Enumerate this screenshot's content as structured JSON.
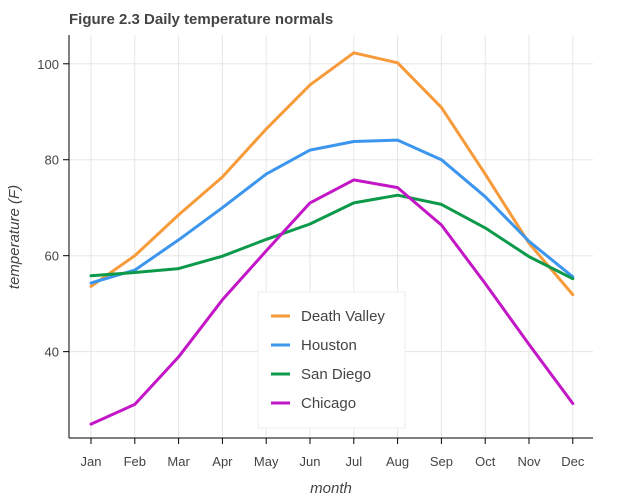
{
  "chart_data": {
    "type": "line",
    "title": "Figure 2.3 Daily temperature normals",
    "xlabel": "month",
    "ylabel": "temperature (F)",
    "categories": [
      "Jan",
      "Feb",
      "Mar",
      "Apr",
      "May",
      "Jun",
      "Jul",
      "Aug",
      "Sep",
      "Oct",
      "Nov",
      "Dec"
    ],
    "yticks": [
      40,
      60,
      80,
      100
    ],
    "ylim": [
      22,
      106
    ],
    "grid": true,
    "legend_position": "bottom-center",
    "series": [
      {
        "name": "Death Valley",
        "color": "#f79b3a",
        "values": [
          53.6,
          60.0,
          68.5,
          76.4,
          86.4,
          95.6,
          102.3,
          100.2,
          90.9,
          77.0,
          62.6,
          51.9
        ]
      },
      {
        "name": "Houston",
        "color": "#3d96ee",
        "values": [
          54.3,
          57.0,
          63.3,
          70.0,
          77.0,
          82.0,
          83.8,
          84.1,
          80.0,
          72.3,
          63.0,
          55.6
        ]
      },
      {
        "name": "San Diego",
        "color": "#0c9a4a",
        "values": [
          55.8,
          56.5,
          57.3,
          59.9,
          63.4,
          66.6,
          71.0,
          72.6,
          70.7,
          65.8,
          59.8,
          55.2
        ]
      },
      {
        "name": "Chicago",
        "color": "#c316c7",
        "values": [
          24.9,
          29.0,
          38.9,
          50.8,
          61.0,
          71.0,
          75.8,
          74.2,
          66.4,
          54.2,
          41.5,
          29.2
        ]
      }
    ]
  }
}
